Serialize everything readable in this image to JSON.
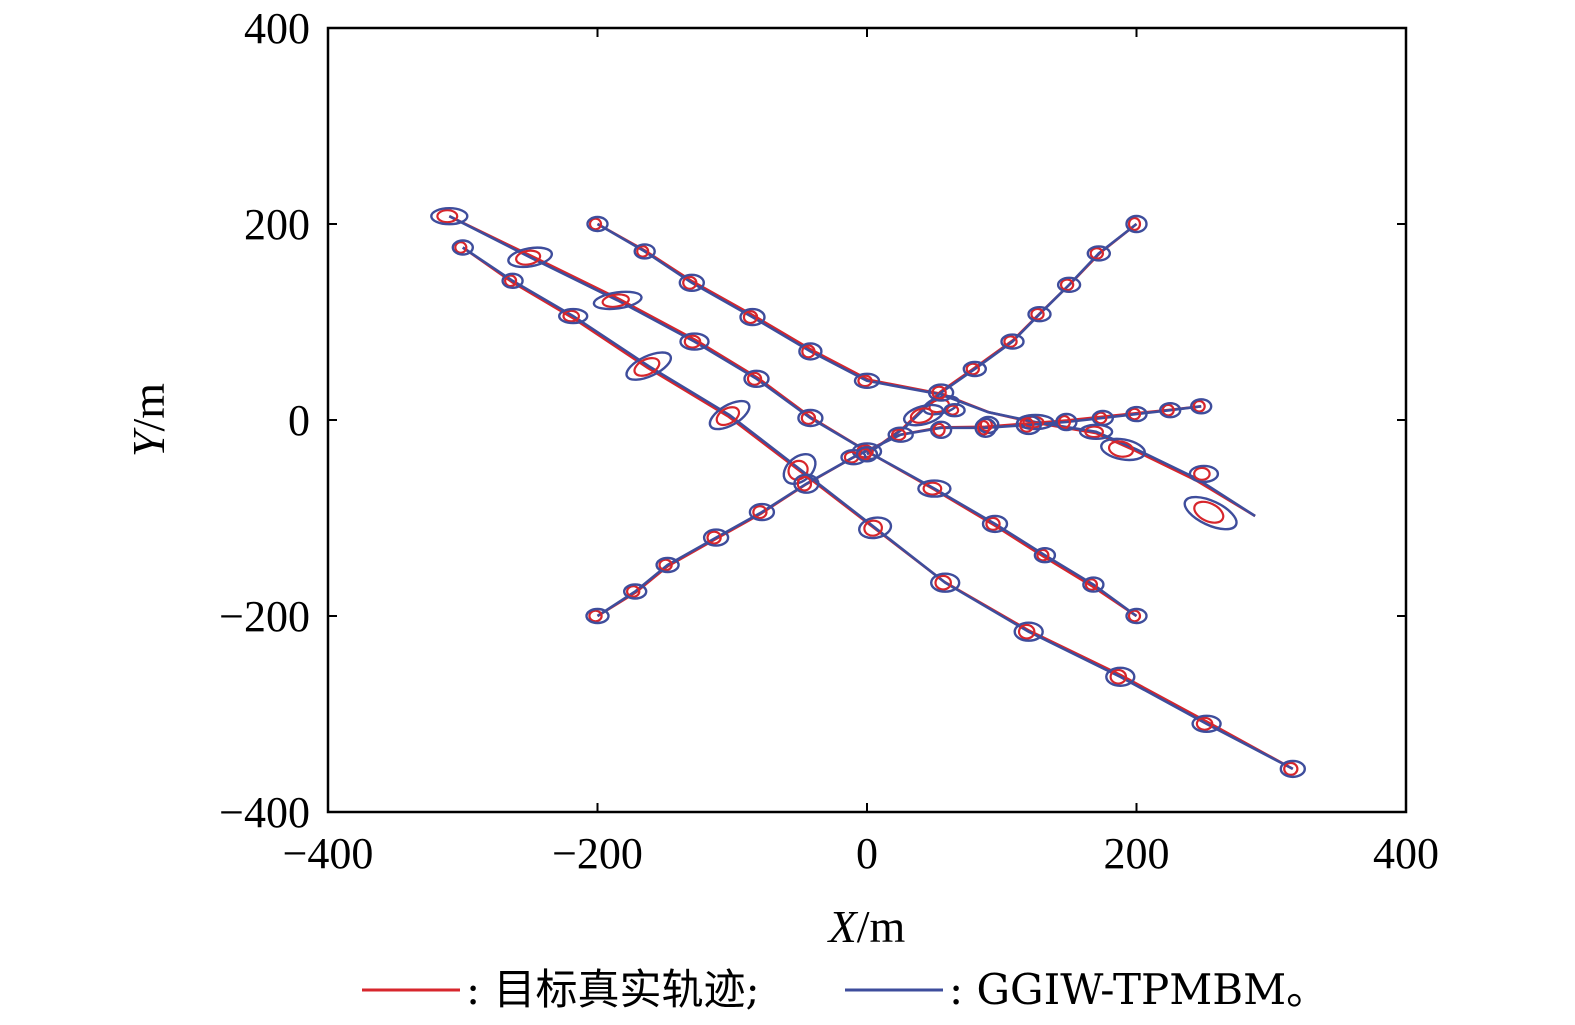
{
  "chart_data": {
    "type": "line",
    "xlabel_italic": "X",
    "xlabel_unit": "/m",
    "ylabel_italic": "Y",
    "ylabel_unit": "/m",
    "xlim": [
      -400,
      400
    ],
    "ylim": [
      -400,
      400
    ],
    "xticks": [
      -400,
      -200,
      0,
      200,
      400
    ],
    "yticks": [
      -400,
      -200,
      0,
      200,
      400
    ],
    "xtick_labels": [
      "−400",
      "−200",
      "0",
      "200",
      "400"
    ],
    "ytick_labels": [
      "−400",
      "−200",
      "0",
      "200",
      "400"
    ],
    "grid": false,
    "legend_placement": "bottom",
    "legend": [
      {
        "label": ": 目标真实轨迹;",
        "color": "#d7262c"
      },
      {
        "label": ": GGIW-TPMBM。",
        "color": "#3e4d9c"
      }
    ],
    "colors": {
      "truth": "#d7262c",
      "estimate": "#3e4d9c"
    },
    "series": [
      {
        "points": [
          [
            -310,
            208
          ],
          [
            -250,
            166
          ],
          [
            -185,
            122
          ],
          [
            -128,
            80
          ],
          [
            -82,
            42
          ],
          [
            -42,
            2
          ],
          [
            0,
            -32
          ],
          [
            50,
            -70
          ],
          [
            95,
            -106
          ],
          [
            132,
            -138
          ],
          [
            168,
            -168
          ],
          [
            200,
            -200
          ]
        ]
      },
      {
        "points": [
          [
            -300,
            176
          ],
          [
            -263,
            142
          ],
          [
            -218,
            106
          ],
          [
            -162,
            55
          ],
          [
            -102,
            5
          ],
          [
            -50,
            -50
          ],
          [
            6,
            -110
          ],
          [
            58,
            -166
          ],
          [
            120,
            -216
          ],
          [
            188,
            -262
          ],
          [
            252,
            -310
          ],
          [
            316,
            -356
          ]
        ]
      },
      {
        "points": [
          [
            -200,
            200
          ],
          [
            -165,
            172
          ],
          [
            -130,
            140
          ],
          [
            -85,
            105
          ],
          [
            -42,
            70
          ],
          [
            0,
            40
          ],
          [
            55,
            26
          ],
          [
            90,
            8
          ],
          [
            125,
            -2
          ],
          [
            170,
            -12
          ],
          [
            200,
            -30
          ],
          [
            245,
            -60
          ],
          [
            288,
            -98
          ]
        ]
      },
      {
        "points": [
          [
            -200,
            -200
          ],
          [
            -172,
            -175
          ],
          [
            -148,
            -148
          ],
          [
            -112,
            -120
          ],
          [
            -78,
            -94
          ],
          [
            -45,
            -65
          ],
          [
            -10,
            -38
          ],
          [
            25,
            -15
          ],
          [
            55,
            -8
          ],
          [
            88,
            -8
          ],
          [
            120,
            -5
          ],
          [
            148,
            -2
          ],
          [
            175,
            2
          ],
          [
            200,
            6
          ],
          [
            225,
            10
          ],
          [
            248,
            14
          ]
        ]
      },
      {
        "points": [
          [
            0,
            -35
          ],
          [
            28,
            -8
          ],
          [
            55,
            28
          ],
          [
            80,
            52
          ],
          [
            108,
            80
          ],
          [
            128,
            108
          ],
          [
            150,
            138
          ],
          [
            172,
            170
          ],
          [
            200,
            200
          ]
        ]
      }
    ],
    "ellipses": [
      [
        -310,
        208,
        18,
        8,
        0
      ],
      [
        -250,
        166,
        22,
        9,
        -10
      ],
      [
        -185,
        122,
        24,
        8,
        -8
      ],
      [
        -128,
        80,
        14,
        8,
        0
      ],
      [
        -82,
        42,
        12,
        8,
        0
      ],
      [
        -42,
        2,
        12,
        8,
        0
      ],
      [
        0,
        -32,
        14,
        8,
        0
      ],
      [
        50,
        -70,
        16,
        8,
        0
      ],
      [
        95,
        -106,
        12,
        8,
        0
      ],
      [
        132,
        -138,
        10,
        7,
        0
      ],
      [
        168,
        -168,
        10,
        7,
        0
      ],
      [
        200,
        -200,
        10,
        7,
        0
      ],
      [
        -300,
        176,
        10,
        7,
        0
      ],
      [
        -263,
        142,
        10,
        7,
        0
      ],
      [
        -218,
        106,
        14,
        7,
        0
      ],
      [
        -162,
        55,
        24,
        10,
        -25
      ],
      [
        -102,
        5,
        22,
        10,
        -30
      ],
      [
        -50,
        -50,
        18,
        12,
        -40
      ],
      [
        -45,
        -65,
        12,
        9,
        0
      ],
      [
        6,
        -110,
        16,
        10,
        -10
      ],
      [
        58,
        -166,
        14,
        9,
        0
      ],
      [
        120,
        -216,
        14,
        9,
        0
      ],
      [
        188,
        -262,
        14,
        9,
        0
      ],
      [
        252,
        -310,
        14,
        8,
        0
      ],
      [
        316,
        -356,
        12,
        8,
        0
      ],
      [
        -200,
        200,
        10,
        7,
        0
      ],
      [
        -165,
        172,
        10,
        7,
        0
      ],
      [
        -130,
        140,
        12,
        8,
        0
      ],
      [
        -85,
        105,
        12,
        8,
        0
      ],
      [
        -42,
        70,
        11,
        8,
        0
      ],
      [
        0,
        40,
        12,
        7,
        0
      ],
      [
        55,
        15,
        18,
        8,
        -15
      ],
      [
        90,
        -5,
        10,
        8,
        0
      ],
      [
        125,
        -2,
        18,
        7,
        0
      ],
      [
        170,
        -12,
        16,
        7,
        0
      ],
      [
        190,
        -30,
        22,
        10,
        10
      ],
      [
        250,
        -55,
        14,
        8,
        0
      ],
      [
        255,
        -95,
        28,
        12,
        25
      ],
      [
        -200,
        -200,
        11,
        7,
        0
      ],
      [
        -172,
        -175,
        11,
        7,
        0
      ],
      [
        -148,
        -148,
        11,
        7,
        0
      ],
      [
        -112,
        -120,
        12,
        8,
        0
      ],
      [
        -78,
        -94,
        12,
        8,
        0
      ],
      [
        -10,
        -38,
        12,
        7,
        0
      ],
      [
        25,
        -15,
        12,
        7,
        0
      ],
      [
        55,
        -10,
        10,
        8,
        0
      ],
      [
        88,
        -8,
        10,
        9,
        0
      ],
      [
        120,
        -5,
        12,
        9,
        0
      ],
      [
        148,
        -2,
        10,
        8,
        0
      ],
      [
        175,
        2,
        10,
        7,
        0
      ],
      [
        200,
        6,
        10,
        7,
        0
      ],
      [
        225,
        10,
        10,
        7,
        0
      ],
      [
        248,
        14,
        10,
        7,
        0
      ],
      [
        0,
        -35,
        10,
        7,
        0
      ],
      [
        42,
        5,
        20,
        9,
        -15
      ],
      [
        55,
        28,
        12,
        8,
        0
      ],
      [
        65,
        10,
        10,
        6,
        0
      ],
      [
        80,
        52,
        11,
        7,
        0
      ],
      [
        108,
        80,
        11,
        7,
        0
      ],
      [
        128,
        108,
        11,
        7,
        0
      ],
      [
        150,
        138,
        11,
        7,
        0
      ],
      [
        172,
        170,
        11,
        7,
        0
      ],
      [
        200,
        200,
        10,
        8,
        0
      ]
    ]
  }
}
